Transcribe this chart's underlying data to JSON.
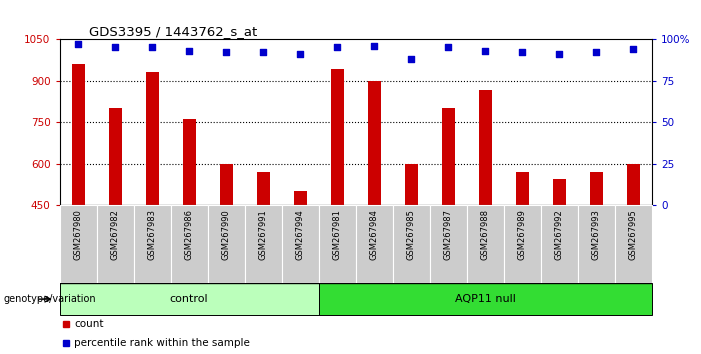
{
  "title": "GDS3395 / 1443762_s_at",
  "samples": [
    "GSM267980",
    "GSM267982",
    "GSM267983",
    "GSM267986",
    "GSM267990",
    "GSM267991",
    "GSM267994",
    "GSM267981",
    "GSM267984",
    "GSM267985",
    "GSM267987",
    "GSM267988",
    "GSM267989",
    "GSM267992",
    "GSM267993",
    "GSM267995"
  ],
  "counts": [
    960,
    800,
    930,
    760,
    600,
    570,
    500,
    940,
    900,
    600,
    800,
    865,
    570,
    545,
    570,
    600
  ],
  "percentile_ranks": [
    97,
    95,
    95,
    93,
    92,
    92,
    91,
    95,
    96,
    88,
    95,
    93,
    92,
    91,
    92,
    94
  ],
  "groups": [
    {
      "label": "control",
      "start": 0,
      "end": 6,
      "color": "#BBFFBB"
    },
    {
      "label": "AQP11 null",
      "start": 7,
      "end": 15,
      "color": "#33DD33"
    }
  ],
  "bar_color": "#CC0000",
  "dot_color": "#0000CC",
  "ylim_left": [
    450,
    1050
  ],
  "ylim_right": [
    0,
    100
  ],
  "yticks_left": [
    450,
    600,
    750,
    900,
    1050
  ],
  "yticks_right": [
    0,
    25,
    50,
    75,
    100
  ],
  "ylabel_left_color": "#CC0000",
  "ylabel_right_color": "#0000CC",
  "background_color": "#FFFFFF",
  "plot_bg_color": "#FFFFFF",
  "genotype_label": "genotype/variation",
  "legend_count_label": "count",
  "legend_pct_label": "percentile rank within the sample",
  "xticklabel_bg": "#CCCCCC"
}
